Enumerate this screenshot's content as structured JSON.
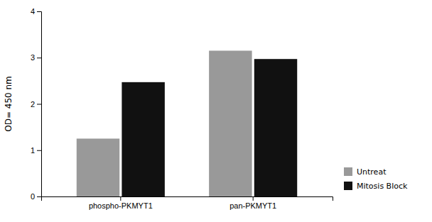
{
  "chart_data": {
    "type": "bar",
    "categories": [
      "phospho-PKMYT1",
      "pan-PKMYT1"
    ],
    "series": [
      {
        "name": "Untreat",
        "color": "#999999",
        "values": [
          1.25,
          3.15
        ]
      },
      {
        "name": "Mitosis Block",
        "color": "#111111",
        "values": [
          2.47,
          2.97
        ]
      }
    ],
    "ylabel": "OD= 450 nm",
    "ylim": [
      0,
      4
    ],
    "yticks": [
      0,
      1,
      2,
      3,
      4
    ],
    "grid": false,
    "legend": "lower right"
  }
}
